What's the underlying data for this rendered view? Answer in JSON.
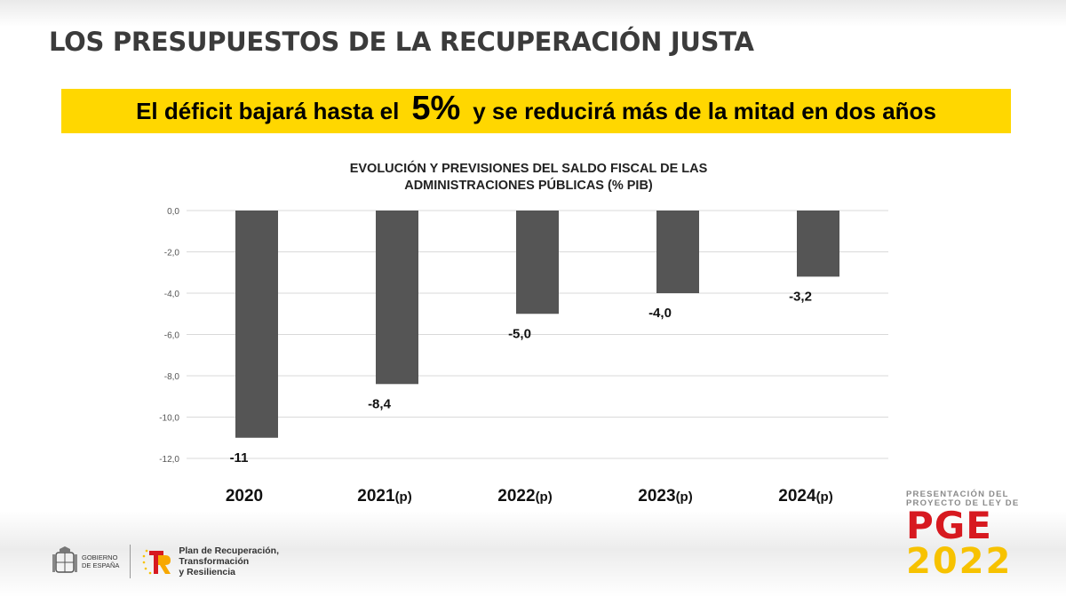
{
  "header": {
    "title": "LOS PRESUPUESTOS DE LA RECUPERACIÓN JUSTA"
  },
  "banner": {
    "before": "El déficit bajará hasta el",
    "highlight": "5%",
    "after": "y se reducirá más de la mitad en dos años"
  },
  "chart_data": {
    "type": "bar",
    "title_lines": [
      "EVOLUCIÓN Y PREVISIONES DEL SALDO FISCAL DE LAS",
      "ADMINISTRACIONES PÚBLICAS (% PIB)"
    ],
    "categories": [
      {
        "year": "2020",
        "suffix": ""
      },
      {
        "year": "2021",
        "suffix": "(p)"
      },
      {
        "year": "2022",
        "suffix": "(p)"
      },
      {
        "year": "2023",
        "suffix": "(p)"
      },
      {
        "year": "2024",
        "suffix": "(p)"
      }
    ],
    "values": [
      -11,
      -8.4,
      -5.0,
      -4.0,
      -3.2
    ],
    "value_labels": [
      "-11",
      "-8,4",
      "-5,0",
      "-4,0",
      "-3,2"
    ],
    "ylim": [
      -12,
      0
    ],
    "yticks": [
      "0,0",
      "-2,0",
      "-4,0",
      "-6,0",
      "-8,0",
      "-10,0",
      "-12,0"
    ],
    "grid": true,
    "bar_color": "#555555"
  },
  "footer": {
    "gov_label_line1": "GOBIERNO",
    "gov_label_line2": "DE ESPAÑA",
    "plan_line1": "Plan de Recuperación,",
    "plan_line2": "Transformación",
    "plan_line3": "y Resiliencia",
    "pge_caption_line1": "PRESENTACIÓN DEL",
    "pge_caption_line2": "PROYECTO DE LEY DE",
    "pge_name": "PGE",
    "pge_year": "2022",
    "colors": {
      "red": "#d71920",
      "yellow": "#f7c200"
    }
  }
}
